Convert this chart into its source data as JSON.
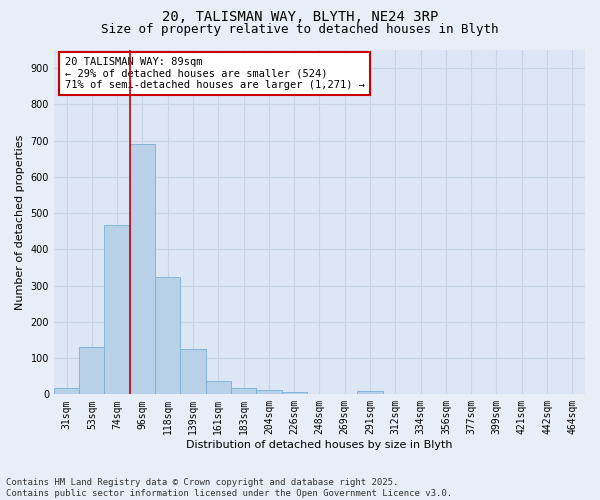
{
  "title_line1": "20, TALISMAN WAY, BLYTH, NE24 3RP",
  "title_line2": "Size of property relative to detached houses in Blyth",
  "xlabel": "Distribution of detached houses by size in Blyth",
  "ylabel": "Number of detached properties",
  "categories": [
    "31sqm",
    "53sqm",
    "74sqm",
    "96sqm",
    "118sqm",
    "139sqm",
    "161sqm",
    "183sqm",
    "204sqm",
    "226sqm",
    "248sqm",
    "269sqm",
    "291sqm",
    "312sqm",
    "334sqm",
    "356sqm",
    "377sqm",
    "399sqm",
    "421sqm",
    "442sqm",
    "464sqm"
  ],
  "values": [
    18,
    130,
    468,
    690,
    325,
    125,
    38,
    18,
    12,
    7,
    0,
    0,
    10,
    0,
    0,
    0,
    0,
    0,
    0,
    0,
    0
  ],
  "bar_color": "#b8d0e8",
  "bar_edge_color": "#7aafd4",
  "vline_x": 2.5,
  "vline_color": "#cc0000",
  "annotation_text": "20 TALISMAN WAY: 89sqm\n← 29% of detached houses are smaller (524)\n71% of semi-detached houses are larger (1,271) →",
  "annotation_box_facecolor": "#ffffff",
  "annotation_box_edgecolor": "#cc0000",
  "ylim": [
    0,
    950
  ],
  "yticks": [
    0,
    100,
    200,
    300,
    400,
    500,
    600,
    700,
    800,
    900
  ],
  "background_color": "#e8eef8",
  "plot_bg_color": "#dce6f5",
  "grid_color": "#c8d4e8",
  "footer": "Contains HM Land Registry data © Crown copyright and database right 2025.\nContains public sector information licensed under the Open Government Licence v3.0.",
  "title_fontsize": 10,
  "subtitle_fontsize": 9,
  "axis_label_fontsize": 8,
  "tick_fontsize": 7,
  "annotation_fontsize": 7.5,
  "footer_fontsize": 6.5
}
